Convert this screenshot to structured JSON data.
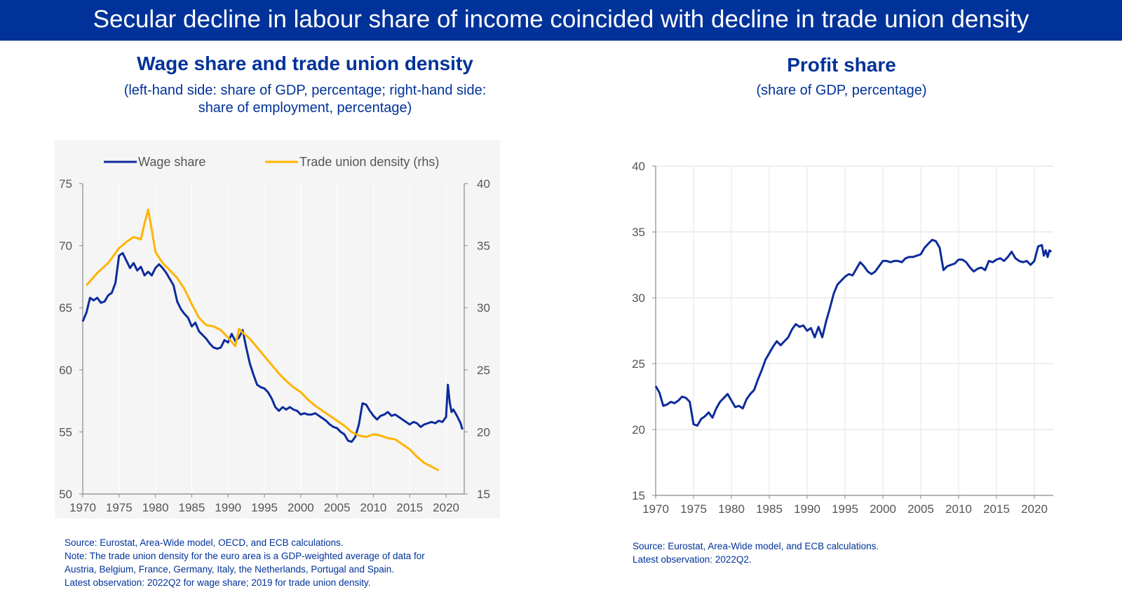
{
  "banner": {
    "title": "Secular decline in labour share of income coincided with decline in trade union density"
  },
  "colors": {
    "banner": "#003299",
    "wage": "#0d2b9b",
    "union": "#ffb400",
    "profit": "#0d2b9b",
    "text": "#003299"
  },
  "left_chart": {
    "title": "Wage share and trade union density",
    "subtitle_line1": "(left-hand side: share of GDP, percentage; right-hand side:",
    "subtitle_line2": "share of employment, percentage)",
    "notes": {
      "source": "Source: Eurostat, Area-Wide model, OECD, and ECB calculations.",
      "note_line1": "Note: The trade union density for the euro area is a GDP-weighted average of data for",
      "note_line2": "Austria, Belgium, France, Germany, Italy, the Netherlands, Portugal and Spain.",
      "latest": "Latest observation: 2022Q2 for wage share; 2019 for trade union density."
    }
  },
  "right_chart": {
    "title": "Profit share",
    "subtitle": "(share of GDP, percentage)",
    "notes": {
      "source": "Source: Eurostat, Area-Wide model, and ECB calculations.",
      "latest": "Latest observation: 2022Q2."
    }
  },
  "chart_data": [
    {
      "type": "line",
      "title": "Wage share and trade union density",
      "legend": "top",
      "grid": true,
      "x_ticks": [
        "1970",
        "1975",
        "1980",
        "1985",
        "1990",
        "1995",
        "2000",
        "2005",
        "2010",
        "2015",
        "2020"
      ],
      "xlim": [
        1970,
        2022.5
      ],
      "ylim_left": [
        50,
        75
      ],
      "ylim_right": [
        15,
        40
      ],
      "y_ticks_left": [
        "50",
        "55",
        "60",
        "65",
        "70",
        "75"
      ],
      "y_ticks_right": [
        "15",
        "20",
        "25",
        "30",
        "35",
        "40"
      ],
      "series": [
        {
          "name": "Wage share",
          "axis": "left",
          "x": [
            1970,
            1970.5,
            1971,
            1971.5,
            1972,
            1972.5,
            1973,
            1973.5,
            1974,
            1974.5,
            1975,
            1975.5,
            1976,
            1976.5,
            1977,
            1977.5,
            1978,
            1978.5,
            1979,
            1979.5,
            1980,
            1980.5,
            1981,
            1981.5,
            1982,
            1982.5,
            1983,
            1983.5,
            1984,
            1984.5,
            1985,
            1985.5,
            1986,
            1986.5,
            1987,
            1987.5,
            1988,
            1988.5,
            1989,
            1989.5,
            1990,
            1990.5,
            1991,
            1991.5,
            1992,
            1992.5,
            1993,
            1993.5,
            1994,
            1994.5,
            1995,
            1995.5,
            1996,
            1996.5,
            1997,
            1997.5,
            1998,
            1998.5,
            1999,
            1999.5,
            2000,
            2000.5,
            2001,
            2001.5,
            2002,
            2002.5,
            2003,
            2003.5,
            2004,
            2004.5,
            2005,
            2005.5,
            2006,
            2006.5,
            2007,
            2007.5,
            2008,
            2008.5,
            2009,
            2009.5,
            2010,
            2010.5,
            2011,
            2011.5,
            2012,
            2012.5,
            2013,
            2013.5,
            2014,
            2014.5,
            2015,
            2015.5,
            2016,
            2016.5,
            2017,
            2017.5,
            2018,
            2018.5,
            2019,
            2019.5,
            2020,
            2020.25,
            2020.5,
            2020.75,
            2021,
            2021.5,
            2022,
            2022.25
          ],
          "values": [
            63.9,
            64.6,
            65.8,
            65.6,
            65.8,
            65.4,
            65.5,
            66.0,
            66.2,
            67.0,
            69.2,
            69.4,
            68.8,
            68.2,
            68.6,
            68.0,
            68.3,
            67.6,
            67.9,
            67.6,
            68.2,
            68.5,
            68.2,
            67.8,
            67.3,
            66.8,
            65.5,
            64.9,
            64.5,
            64.2,
            63.5,
            63.8,
            63.1,
            62.8,
            62.5,
            62.1,
            61.8,
            61.7,
            61.8,
            62.4,
            62.2,
            62.9,
            62.3,
            62.6,
            63.2,
            61.8,
            60.5,
            59.6,
            58.8,
            58.6,
            58.5,
            58.2,
            57.7,
            57.0,
            56.7,
            57.0,
            56.8,
            57.0,
            56.8,
            56.7,
            56.4,
            56.5,
            56.4,
            56.4,
            56.5,
            56.3,
            56.1,
            55.9,
            55.6,
            55.4,
            55.3,
            55.0,
            54.8,
            54.3,
            54.2,
            54.6,
            55.6,
            57.3,
            57.2,
            56.7,
            56.3,
            56.0,
            56.3,
            56.4,
            56.6,
            56.3,
            56.4,
            56.2,
            56.0,
            55.8,
            55.6,
            55.8,
            55.7,
            55.4,
            55.6,
            55.7,
            55.8,
            55.7,
            55.9,
            55.8,
            56.2,
            58.8,
            57.4,
            56.6,
            56.8,
            56.3,
            55.7,
            55.2
          ]
        },
        {
          "name": "Trade union density (rhs)",
          "axis": "right",
          "x": [
            1970.5,
            1972,
            1973.5,
            1975,
            1976,
            1977,
            1978,
            1978.5,
            1979,
            1979.5,
            1980,
            1981,
            1982,
            1983,
            1984,
            1985,
            1986,
            1987,
            1988,
            1989,
            1990,
            1991,
            1991.5,
            1992,
            1993,
            1994,
            1995,
            1996,
            1997,
            1998,
            1999,
            2000,
            2001,
            2002,
            2003,
            2004,
            2005,
            2006,
            2007,
            2008,
            2009,
            2010,
            2011,
            2012,
            2013,
            2014,
            2015,
            2016,
            2017,
            2018,
            2019
          ],
          "values": [
            31.8,
            32.8,
            33.6,
            34.8,
            35.3,
            35.7,
            35.5,
            36.8,
            37.9,
            36.3,
            34.5,
            33.6,
            33.0,
            32.4,
            31.5,
            30.3,
            29.2,
            28.6,
            28.5,
            28.2,
            27.6,
            26.9,
            28.3,
            28.0,
            27.5,
            26.8,
            26.1,
            25.4,
            24.7,
            24.1,
            23.6,
            23.2,
            22.6,
            22.1,
            21.7,
            21.3,
            20.9,
            20.5,
            20.0,
            19.7,
            19.6,
            19.8,
            19.7,
            19.5,
            19.4,
            19.0,
            18.6,
            18.0,
            17.5,
            17.2,
            16.9
          ]
        }
      ]
    },
    {
      "type": "line",
      "title": "Profit share",
      "legend": "none",
      "grid": true,
      "x_ticks": [
        "1970",
        "1975",
        "1980",
        "1985",
        "1990",
        "1995",
        "2000",
        "2005",
        "2010",
        "2015",
        "2020"
      ],
      "xlim": [
        1970,
        2022.5
      ],
      "ylim": [
        15,
        40
      ],
      "y_ticks": [
        "15",
        "20",
        "25",
        "30",
        "35",
        "40"
      ],
      "series": [
        {
          "name": "Profit share",
          "x": [
            1970,
            1970.5,
            1971,
            1971.5,
            1972,
            1972.5,
            1973,
            1973.5,
            1974,
            1974.5,
            1975,
            1975.5,
            1976,
            1976.5,
            1977,
            1977.5,
            1978,
            1978.5,
            1979,
            1979.5,
            1980,
            1980.5,
            1981,
            1981.5,
            1982,
            1982.5,
            1983,
            1983.5,
            1984,
            1984.5,
            1985,
            1985.5,
            1986,
            1986.5,
            1987,
            1987.5,
            1988,
            1988.5,
            1989,
            1989.5,
            1990,
            1990.5,
            1991,
            1991.5,
            1992,
            1992.5,
            1993,
            1993.5,
            1994,
            1994.5,
            1995,
            1995.5,
            1996,
            1996.5,
            1997,
            1997.5,
            1998,
            1998.5,
            1999,
            1999.5,
            2000,
            2000.5,
            2001,
            2001.5,
            2002,
            2002.5,
            2003,
            2003.5,
            2004,
            2004.5,
            2005,
            2005.5,
            2006,
            2006.5,
            2007,
            2007.5,
            2008,
            2008.5,
            2009,
            2009.5,
            2010,
            2010.5,
            2011,
            2011.5,
            2012,
            2012.5,
            2013,
            2013.5,
            2014,
            2014.5,
            2015,
            2015.5,
            2016,
            2016.5,
            2017,
            2017.5,
            2018,
            2018.5,
            2019,
            2019.5,
            2020,
            2020.5,
            2021,
            2021.25,
            2021.5,
            2021.75,
            2022,
            2022.25
          ],
          "values": [
            23.3,
            22.8,
            21.8,
            21.9,
            22.1,
            22.0,
            22.2,
            22.5,
            22.4,
            22.1,
            20.4,
            20.3,
            20.8,
            21.0,
            21.3,
            20.9,
            21.6,
            22.1,
            22.4,
            22.7,
            22.2,
            21.7,
            21.8,
            21.6,
            22.3,
            22.7,
            23.0,
            23.8,
            24.5,
            25.3,
            25.8,
            26.3,
            26.7,
            26.4,
            26.7,
            27.0,
            27.6,
            28.0,
            27.8,
            27.9,
            27.5,
            27.7,
            27.0,
            27.8,
            27.0,
            28.2,
            29.2,
            30.3,
            31.0,
            31.3,
            31.6,
            31.8,
            31.7,
            32.2,
            32.7,
            32.4,
            32.0,
            31.8,
            32.0,
            32.4,
            32.8,
            32.8,
            32.7,
            32.8,
            32.8,
            32.7,
            33.0,
            33.1,
            33.1,
            33.2,
            33.3,
            33.8,
            34.1,
            34.4,
            34.3,
            33.8,
            32.1,
            32.4,
            32.5,
            32.6,
            32.9,
            32.9,
            32.7,
            32.3,
            32.0,
            32.2,
            32.3,
            32.1,
            32.8,
            32.7,
            32.9,
            33.0,
            32.8,
            33.1,
            33.5,
            33.0,
            32.8,
            32.7,
            32.8,
            32.5,
            32.8,
            33.9,
            34.0,
            33.2,
            33.6,
            33.1,
            33.6,
            33.5
          ]
        }
      ]
    }
  ]
}
